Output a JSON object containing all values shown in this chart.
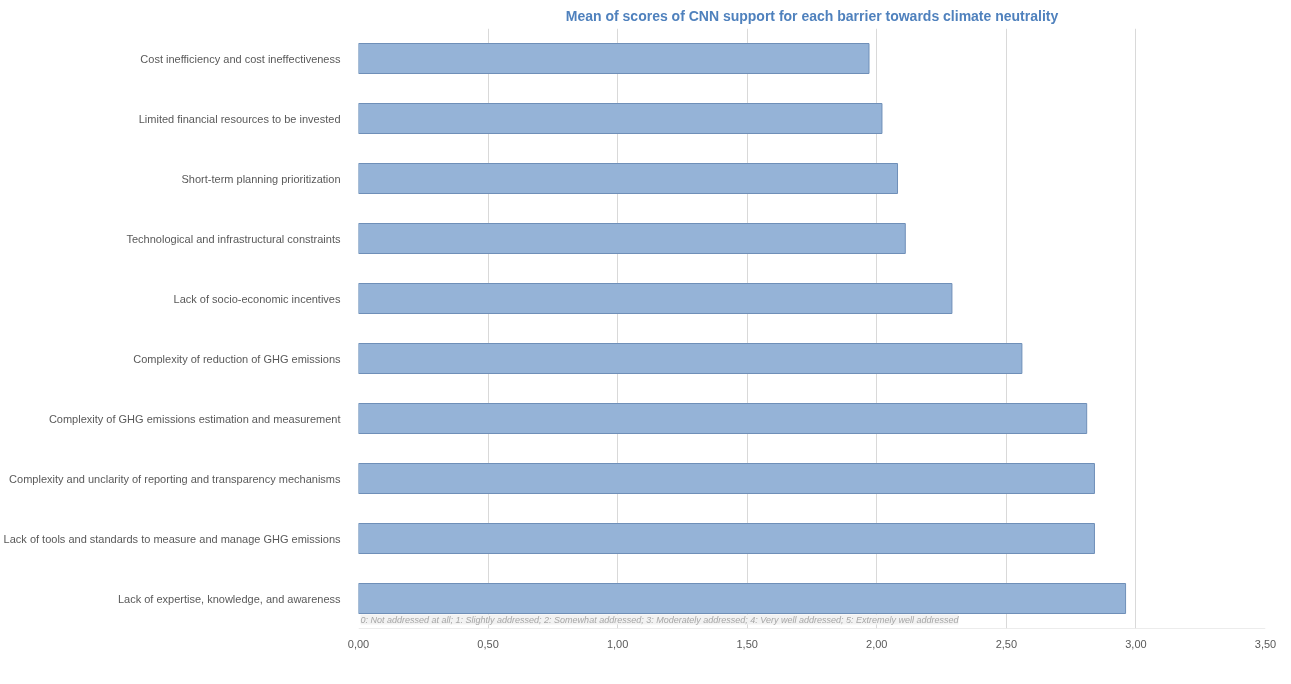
{
  "chart_data": {
    "type": "bar",
    "orientation": "horizontal",
    "title": "Mean of scores of CNN support for each barrier towards climate neutrality",
    "categories": [
      "Cost inefficiency and cost ineffectiveness",
      "Limited financial resources to be invested",
      "Short-term planning prioritization",
      "Technological and infrastructural constraints",
      "Lack of socio-economic incentives",
      "Complexity of reduction of GHG emissions",
      "Complexity of GHG emissions estimation and measurement",
      "Complexity and unclarity of reporting and transparency mechanisms",
      "Lack of tools and standards to measure and manage GHG emissions",
      "Lack of expertise, knowledge, and awareness"
    ],
    "values": [
      1.97,
      2.02,
      2.08,
      2.11,
      2.29,
      2.56,
      2.81,
      2.84,
      2.84,
      2.96
    ],
    "color": "#95b3d7",
    "xlim": [
      0,
      3.5
    ],
    "xticks": [
      {
        "value": 0,
        "label": "0,00"
      },
      {
        "value": 0.5,
        "label": "0,50"
      },
      {
        "value": 1,
        "label": "1,00"
      },
      {
        "value": 1.5,
        "label": "1,50"
      },
      {
        "value": 2,
        "label": "2,00"
      },
      {
        "value": 2.5,
        "label": "2,50"
      },
      {
        "value": 3,
        "label": "3,00"
      },
      {
        "value": 3.5,
        "label": "3,50"
      }
    ],
    "grid": "x",
    "annotations": [
      "0: Not addressed at all; 1: Slightly addressed; 2: Somewhat addressed; 3: Moderately addressed; 4: Very well addressed; 5: Extremely well addressed"
    ]
  }
}
